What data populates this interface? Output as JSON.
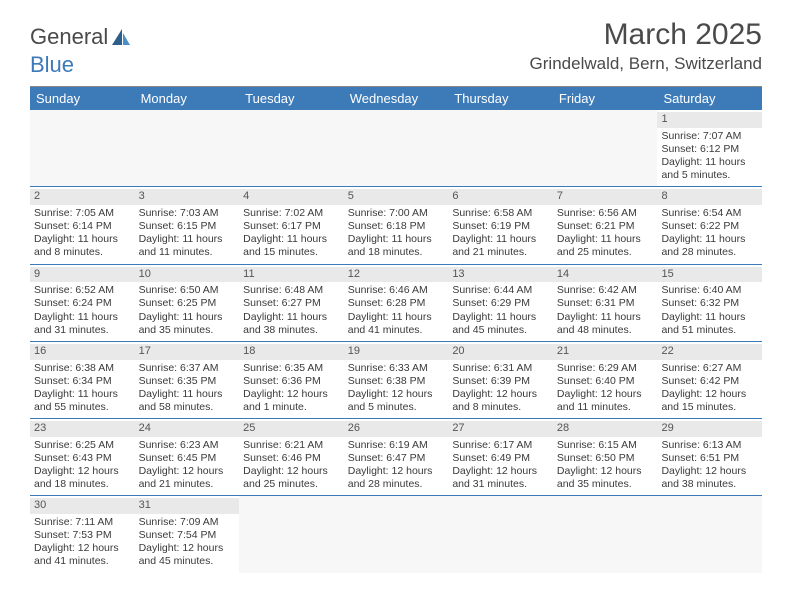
{
  "brand": {
    "word1": "General",
    "word2": "Blue"
  },
  "title": "March 2025",
  "location": "Grindelwald, Bern, Switzerland",
  "weekdays": [
    "Sunday",
    "Monday",
    "Tuesday",
    "Wednesday",
    "Thursday",
    "Friday",
    "Saturday"
  ],
  "colors": {
    "header_bar": "#3d7ab8",
    "row_divider": "#3d7ab8",
    "daynum_bg": "#e9e9e9",
    "empty_bg": "#f7f7f7",
    "text": "#3a3a3a"
  },
  "weeks": [
    [
      null,
      null,
      null,
      null,
      null,
      null,
      {
        "n": "1",
        "sunrise": "Sunrise: 7:07 AM",
        "sunset": "Sunset: 6:12 PM",
        "daylight": "Daylight: 11 hours and 5 minutes."
      }
    ],
    [
      {
        "n": "2",
        "sunrise": "Sunrise: 7:05 AM",
        "sunset": "Sunset: 6:14 PM",
        "daylight": "Daylight: 11 hours and 8 minutes."
      },
      {
        "n": "3",
        "sunrise": "Sunrise: 7:03 AM",
        "sunset": "Sunset: 6:15 PM",
        "daylight": "Daylight: 11 hours and 11 minutes."
      },
      {
        "n": "4",
        "sunrise": "Sunrise: 7:02 AM",
        "sunset": "Sunset: 6:17 PM",
        "daylight": "Daylight: 11 hours and 15 minutes."
      },
      {
        "n": "5",
        "sunrise": "Sunrise: 7:00 AM",
        "sunset": "Sunset: 6:18 PM",
        "daylight": "Daylight: 11 hours and 18 minutes."
      },
      {
        "n": "6",
        "sunrise": "Sunrise: 6:58 AM",
        "sunset": "Sunset: 6:19 PM",
        "daylight": "Daylight: 11 hours and 21 minutes."
      },
      {
        "n": "7",
        "sunrise": "Sunrise: 6:56 AM",
        "sunset": "Sunset: 6:21 PM",
        "daylight": "Daylight: 11 hours and 25 minutes."
      },
      {
        "n": "8",
        "sunrise": "Sunrise: 6:54 AM",
        "sunset": "Sunset: 6:22 PM",
        "daylight": "Daylight: 11 hours and 28 minutes."
      }
    ],
    [
      {
        "n": "9",
        "sunrise": "Sunrise: 6:52 AM",
        "sunset": "Sunset: 6:24 PM",
        "daylight": "Daylight: 11 hours and 31 minutes."
      },
      {
        "n": "10",
        "sunrise": "Sunrise: 6:50 AM",
        "sunset": "Sunset: 6:25 PM",
        "daylight": "Daylight: 11 hours and 35 minutes."
      },
      {
        "n": "11",
        "sunrise": "Sunrise: 6:48 AM",
        "sunset": "Sunset: 6:27 PM",
        "daylight": "Daylight: 11 hours and 38 minutes."
      },
      {
        "n": "12",
        "sunrise": "Sunrise: 6:46 AM",
        "sunset": "Sunset: 6:28 PM",
        "daylight": "Daylight: 11 hours and 41 minutes."
      },
      {
        "n": "13",
        "sunrise": "Sunrise: 6:44 AM",
        "sunset": "Sunset: 6:29 PM",
        "daylight": "Daylight: 11 hours and 45 minutes."
      },
      {
        "n": "14",
        "sunrise": "Sunrise: 6:42 AM",
        "sunset": "Sunset: 6:31 PM",
        "daylight": "Daylight: 11 hours and 48 minutes."
      },
      {
        "n": "15",
        "sunrise": "Sunrise: 6:40 AM",
        "sunset": "Sunset: 6:32 PM",
        "daylight": "Daylight: 11 hours and 51 minutes."
      }
    ],
    [
      {
        "n": "16",
        "sunrise": "Sunrise: 6:38 AM",
        "sunset": "Sunset: 6:34 PM",
        "daylight": "Daylight: 11 hours and 55 minutes."
      },
      {
        "n": "17",
        "sunrise": "Sunrise: 6:37 AM",
        "sunset": "Sunset: 6:35 PM",
        "daylight": "Daylight: 11 hours and 58 minutes."
      },
      {
        "n": "18",
        "sunrise": "Sunrise: 6:35 AM",
        "sunset": "Sunset: 6:36 PM",
        "daylight": "Daylight: 12 hours and 1 minute."
      },
      {
        "n": "19",
        "sunrise": "Sunrise: 6:33 AM",
        "sunset": "Sunset: 6:38 PM",
        "daylight": "Daylight: 12 hours and 5 minutes."
      },
      {
        "n": "20",
        "sunrise": "Sunrise: 6:31 AM",
        "sunset": "Sunset: 6:39 PM",
        "daylight": "Daylight: 12 hours and 8 minutes."
      },
      {
        "n": "21",
        "sunrise": "Sunrise: 6:29 AM",
        "sunset": "Sunset: 6:40 PM",
        "daylight": "Daylight: 12 hours and 11 minutes."
      },
      {
        "n": "22",
        "sunrise": "Sunrise: 6:27 AM",
        "sunset": "Sunset: 6:42 PM",
        "daylight": "Daylight: 12 hours and 15 minutes."
      }
    ],
    [
      {
        "n": "23",
        "sunrise": "Sunrise: 6:25 AM",
        "sunset": "Sunset: 6:43 PM",
        "daylight": "Daylight: 12 hours and 18 minutes."
      },
      {
        "n": "24",
        "sunrise": "Sunrise: 6:23 AM",
        "sunset": "Sunset: 6:45 PM",
        "daylight": "Daylight: 12 hours and 21 minutes."
      },
      {
        "n": "25",
        "sunrise": "Sunrise: 6:21 AM",
        "sunset": "Sunset: 6:46 PM",
        "daylight": "Daylight: 12 hours and 25 minutes."
      },
      {
        "n": "26",
        "sunrise": "Sunrise: 6:19 AM",
        "sunset": "Sunset: 6:47 PM",
        "daylight": "Daylight: 12 hours and 28 minutes."
      },
      {
        "n": "27",
        "sunrise": "Sunrise: 6:17 AM",
        "sunset": "Sunset: 6:49 PM",
        "daylight": "Daylight: 12 hours and 31 minutes."
      },
      {
        "n": "28",
        "sunrise": "Sunrise: 6:15 AM",
        "sunset": "Sunset: 6:50 PM",
        "daylight": "Daylight: 12 hours and 35 minutes."
      },
      {
        "n": "29",
        "sunrise": "Sunrise: 6:13 AM",
        "sunset": "Sunset: 6:51 PM",
        "daylight": "Daylight: 12 hours and 38 minutes."
      }
    ],
    [
      {
        "n": "30",
        "sunrise": "Sunrise: 7:11 AM",
        "sunset": "Sunset: 7:53 PM",
        "daylight": "Daylight: 12 hours and 41 minutes."
      },
      {
        "n": "31",
        "sunrise": "Sunrise: 7:09 AM",
        "sunset": "Sunset: 7:54 PM",
        "daylight": "Daylight: 12 hours and 45 minutes."
      },
      null,
      null,
      null,
      null,
      null
    ]
  ]
}
